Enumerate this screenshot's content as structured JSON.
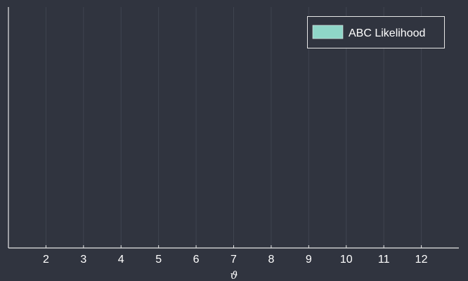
{
  "chart_data": {
    "type": "bar",
    "title": "",
    "xlabel": "ϑ",
    "ylabel": "",
    "xlim": [
      1,
      13
    ],
    "x_ticks": [
      2,
      3,
      4,
      5,
      6,
      7,
      8,
      9,
      10,
      11,
      12
    ],
    "grid": true,
    "legend_position": "top-right",
    "series": [
      {
        "name": "ABC Likelihood",
        "color": "#8fd6c8",
        "values": []
      }
    ],
    "background_color": "#30343f",
    "axis_color": "#e6e6e6",
    "grid_color": "#3f4450"
  }
}
